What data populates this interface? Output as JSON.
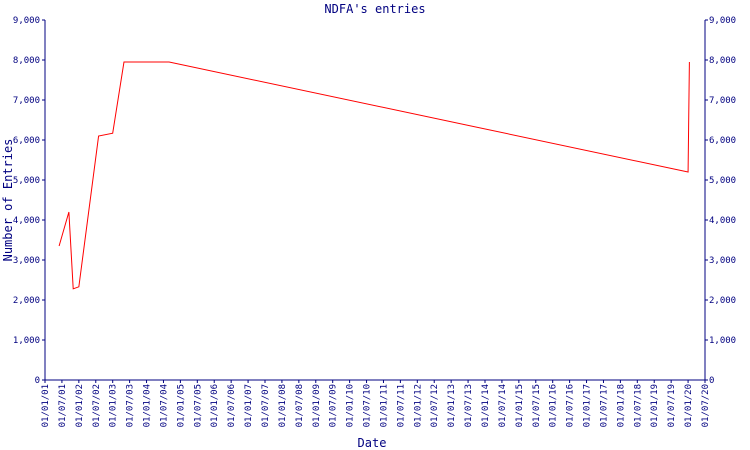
{
  "chart_data": {
    "type": "line",
    "title": "NDFA's entries",
    "x_label": "Date",
    "y_label": "Number of Entries",
    "x": [
      "01/06/01",
      "15/09/01",
      "01/11/01",
      "01/01/02",
      "01/08/02",
      "01/01/03",
      "01/05/03",
      "01/09/04",
      "01/01/20",
      "15/01/20"
    ],
    "values": [
      3350,
      4200,
      2280,
      2330,
      6100,
      6170,
      7950,
      7950,
      5200,
      7950
    ],
    "color": "#ff0000",
    "xlim": [
      "01/01/01",
      "01/07/20"
    ],
    "xticks": [
      "01/01/01",
      "01/07/01",
      "01/01/02",
      "01/07/02",
      "01/01/03",
      "01/07/03",
      "01/01/04",
      "01/07/04",
      "01/01/05",
      "01/07/05",
      "01/01/06",
      "01/07/06",
      "01/01/07",
      "01/07/07",
      "01/01/08",
      "01/07/08",
      "01/01/09",
      "01/07/09",
      "01/01/10",
      "01/07/10",
      "01/01/11",
      "01/07/11",
      "01/01/12",
      "01/07/12",
      "01/01/13",
      "01/07/13",
      "01/01/14",
      "01/07/14",
      "01/01/15",
      "01/07/15",
      "01/01/16",
      "01/07/16",
      "01/01/17",
      "01/07/17",
      "01/01/18",
      "01/07/18",
      "01/01/19",
      "01/07/19",
      "01/01/20",
      "01/07/20"
    ],
    "ylim": [
      0,
      9000
    ],
    "yticks": [
      0,
      {
        "value": 1000,
        "label": "1,000"
      },
      {
        "value": 2000,
        "label": "2,000"
      },
      {
        "value": 3000,
        "label": "3,000"
      },
      {
        "value": 4000,
        "label": "4,000"
      },
      {
        "value": 5000,
        "label": "5,000"
      },
      {
        "value": 6000,
        "label": "6,000"
      },
      {
        "value": 7000,
        "label": "7,000"
      },
      {
        "value": 8000,
        "label": "8,000"
      },
      {
        "value": 9000,
        "label": "9,000"
      }
    ],
    "y2lim": [
      0,
      9000
    ],
    "y2ticks": [
      0,
      {
        "value": 1000,
        "label": "1,000"
      },
      {
        "value": 2000,
        "label": "2,000"
      },
      {
        "value": 3000,
        "label": "3,000"
      },
      {
        "value": 4000,
        "label": "4,000"
      },
      {
        "value": 5000,
        "label": "5,000"
      },
      {
        "value": 6000,
        "label": "6,000"
      },
      {
        "value": 7000,
        "label": "7,000"
      },
      {
        "value": 8000,
        "label": "8,000"
      },
      {
        "value": 9000,
        "label": "9,000"
      }
    ]
  }
}
